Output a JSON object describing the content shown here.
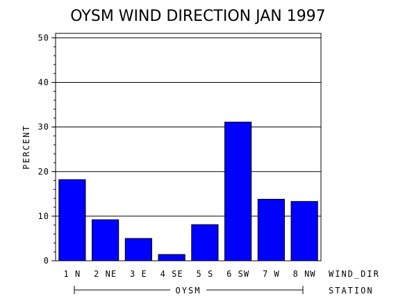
{
  "chart_data": {
    "type": "bar",
    "title": "OYSM WIND DIRECTION JAN 1997",
    "ylabel": "PERCENT",
    "xlabel": "WIND_DIR",
    "group_label": "STATION",
    "group_value": "OYSM",
    "categories": [
      "1 N",
      "2 NE",
      "3 E",
      "4 SE",
      "5 S",
      "6 SW",
      "7 W",
      "8 NW"
    ],
    "values": [
      18.2,
      9.2,
      5.0,
      1.4,
      8.1,
      31.1,
      13.8,
      13.3
    ],
    "ylim": [
      0,
      51
    ],
    "yticks": [
      0,
      10,
      20,
      30,
      40,
      50
    ],
    "ytick_labels": [
      "0",
      "10",
      "20",
      "30",
      "40",
      "50"
    ],
    "grid": true,
    "bar_color": "#0000ff"
  }
}
